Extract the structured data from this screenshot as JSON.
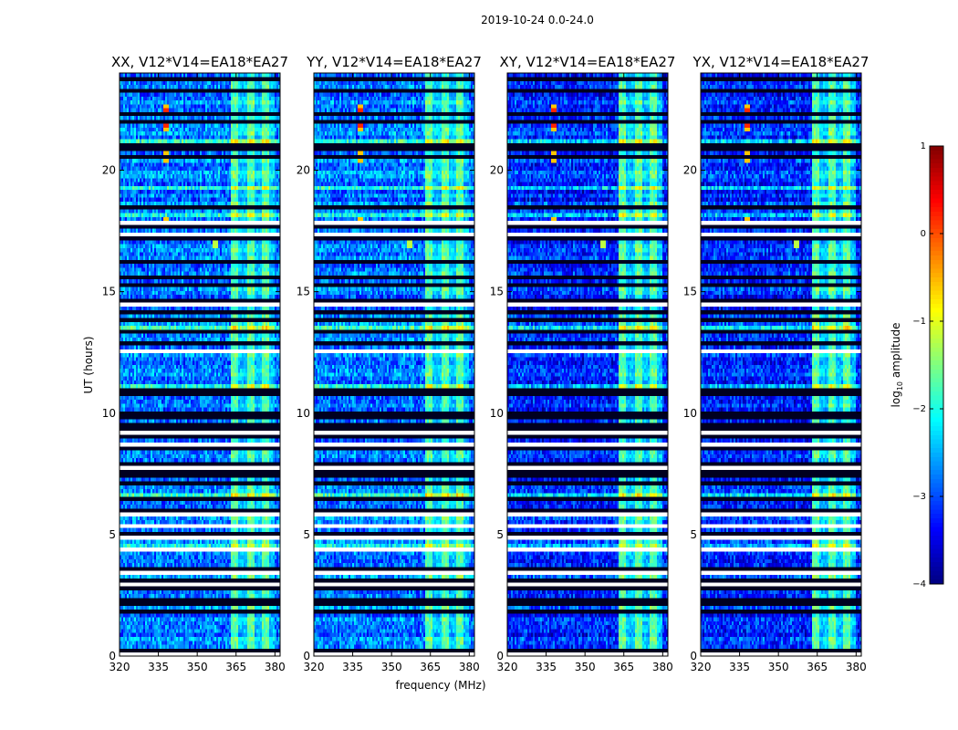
{
  "chart_data": {
    "type": "heatmap",
    "suptitle": "2019-10-24 0.0-24.0",
    "xlabel": "frequency (MHz)",
    "ylabel": "UT (hours)",
    "xlim": [
      320,
      382
    ],
    "ylim": [
      0,
      24
    ],
    "xticks": [
      320,
      335,
      350,
      365,
      380
    ],
    "yticks": [
      0,
      5,
      10,
      15,
      20
    ],
    "panels": [
      {
        "title": "XX, V12*V14=EA18*EA27",
        "base_level": -2.8
      },
      {
        "title": "YY, V12*V14=EA18*EA27",
        "base_level": -2.8
      },
      {
        "title": "XY, V12*V14=EA18*EA27",
        "base_level": -3.2
      },
      {
        "title": "YX, V12*V14=EA18*EA27",
        "base_level": -3.2
      }
    ],
    "colorbar": {
      "label_prefix": "log",
      "label_sub": "10",
      "label_suffix": " amplitude",
      "vmin": -4,
      "vmax": 1,
      "ticks": [
        1,
        0,
        -1,
        -2,
        -3,
        -4
      ],
      "tick_labels": [
        "1",
        "0",
        "−1",
        "−2",
        "−3",
        "−4"
      ],
      "colormap": "jet"
    },
    "features": {
      "rfi_band_mhz": [
        363,
        380
      ],
      "rfi_level": -1.5,
      "spike_freq_mhz": 338,
      "spike_times_ut": [
        17.8,
        20.5,
        20.8,
        21.9,
        22.5
      ],
      "spike_level": 0.2,
      "spot_freq_mhz": 357,
      "spot_time_ut": 17.0,
      "bright_rows_ut": [
        23.3,
        21.2,
        19.3,
        18.2,
        13.5,
        11.2,
        10.8,
        6.6,
        4.6
      ],
      "flagged_row_count": 72
    }
  }
}
